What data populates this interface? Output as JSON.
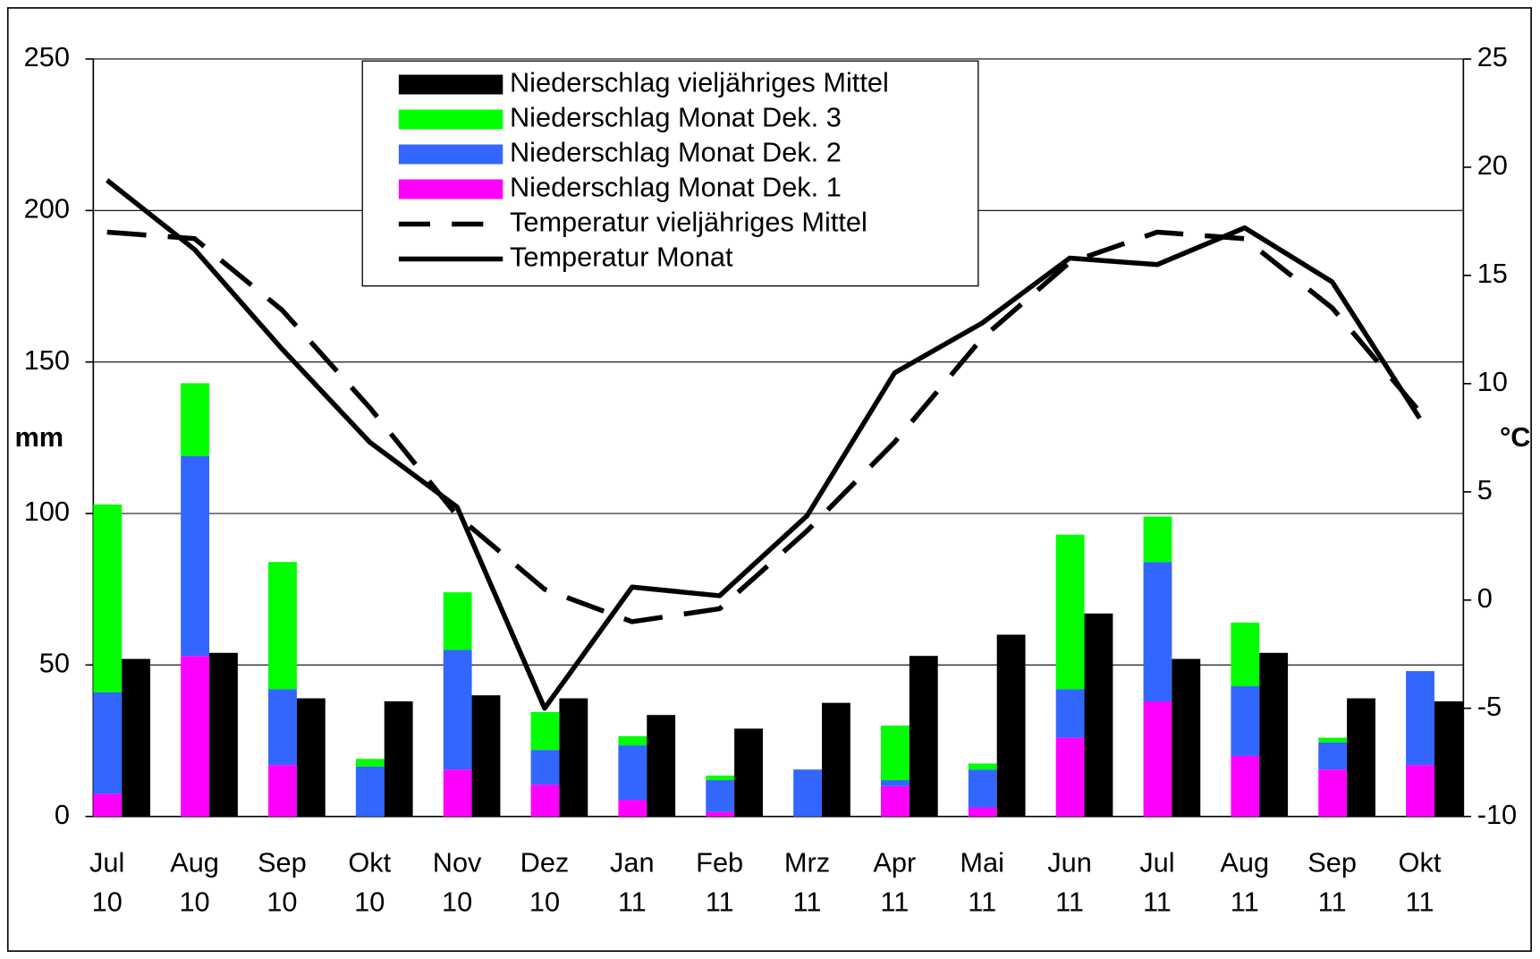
{
  "chart_data": {
    "type": "bar",
    "y_label": "mm",
    "y2_label": "°C",
    "categories": [
      "Jul 10",
      "Aug 10",
      "Sep 10",
      "Okt 10",
      "Nov 10",
      "Dez 10",
      "Jan 11",
      "Feb 11",
      "Mrz 11",
      "Apr 11",
      "Mai 11",
      "Jun 11",
      "Jul 11",
      "Aug 11",
      "Sep 11",
      "Okt 11"
    ],
    "ylim": [
      0,
      250
    ],
    "yticks": [
      0,
      50,
      100,
      150,
      200,
      250
    ],
    "y2lim": [
      -10,
      25
    ],
    "y2ticks": [
      -10,
      -5,
      0,
      5,
      10,
      15,
      20,
      25
    ],
    "grid": true,
    "series": [
      {
        "name": "Niederschlag vieljähriges Mittel",
        "type": "bar",
        "color": "#000000",
        "values": [
          52,
          54,
          39,
          38,
          40,
          39,
          33.5,
          29,
          37.5,
          53,
          60,
          67,
          52,
          54,
          39,
          38
        ]
      },
      {
        "name": "Niederschlag Monat Dek. 3",
        "type": "bar",
        "stack": true,
        "color": "#00ff00",
        "values": [
          62,
          24,
          42,
          2.5,
          19,
          12.5,
          3,
          1.5,
          0,
          18,
          2,
          51,
          15,
          21,
          1.5,
          0
        ]
      },
      {
        "name": "Niederschlag Monat Dek. 2",
        "type": "bar",
        "stack": true,
        "color": "#3366ff",
        "values": [
          33.5,
          66,
          25,
          16.5,
          39.5,
          11.5,
          18,
          10.5,
          15.5,
          2,
          12.5,
          16,
          46,
          23,
          9,
          31
        ]
      },
      {
        "name": "Niederschlag Monat Dek. 1",
        "type": "bar",
        "stack": true,
        "color": "#ff00ff",
        "values": [
          7.5,
          53,
          17,
          0,
          15.5,
          10.5,
          5.5,
          1.5,
          0,
          10,
          3,
          26,
          38,
          20,
          15.5,
          17
        ]
      },
      {
        "name": "Temperatur vieljähriges Mittel",
        "type": "line",
        "dashed": true,
        "axis": "y2",
        "color": "#000000",
        "values": [
          17.0,
          16.7,
          13.4,
          8.9,
          3.9,
          0.5,
          -1.0,
          -0.4,
          3.2,
          7.3,
          12.1,
          15.6,
          17.0,
          16.7,
          13.5,
          8.7
        ]
      },
      {
        "name": "Temperatur Monat",
        "type": "line",
        "axis": "y2",
        "color": "#000000",
        "values": [
          19.4,
          16.2,
          11.6,
          7.3,
          4.3,
          -5.0,
          0.6,
          0.2,
          3.9,
          10.5,
          12.8,
          15.8,
          15.5,
          17.2,
          14.7,
          8.4
        ]
      }
    ]
  }
}
